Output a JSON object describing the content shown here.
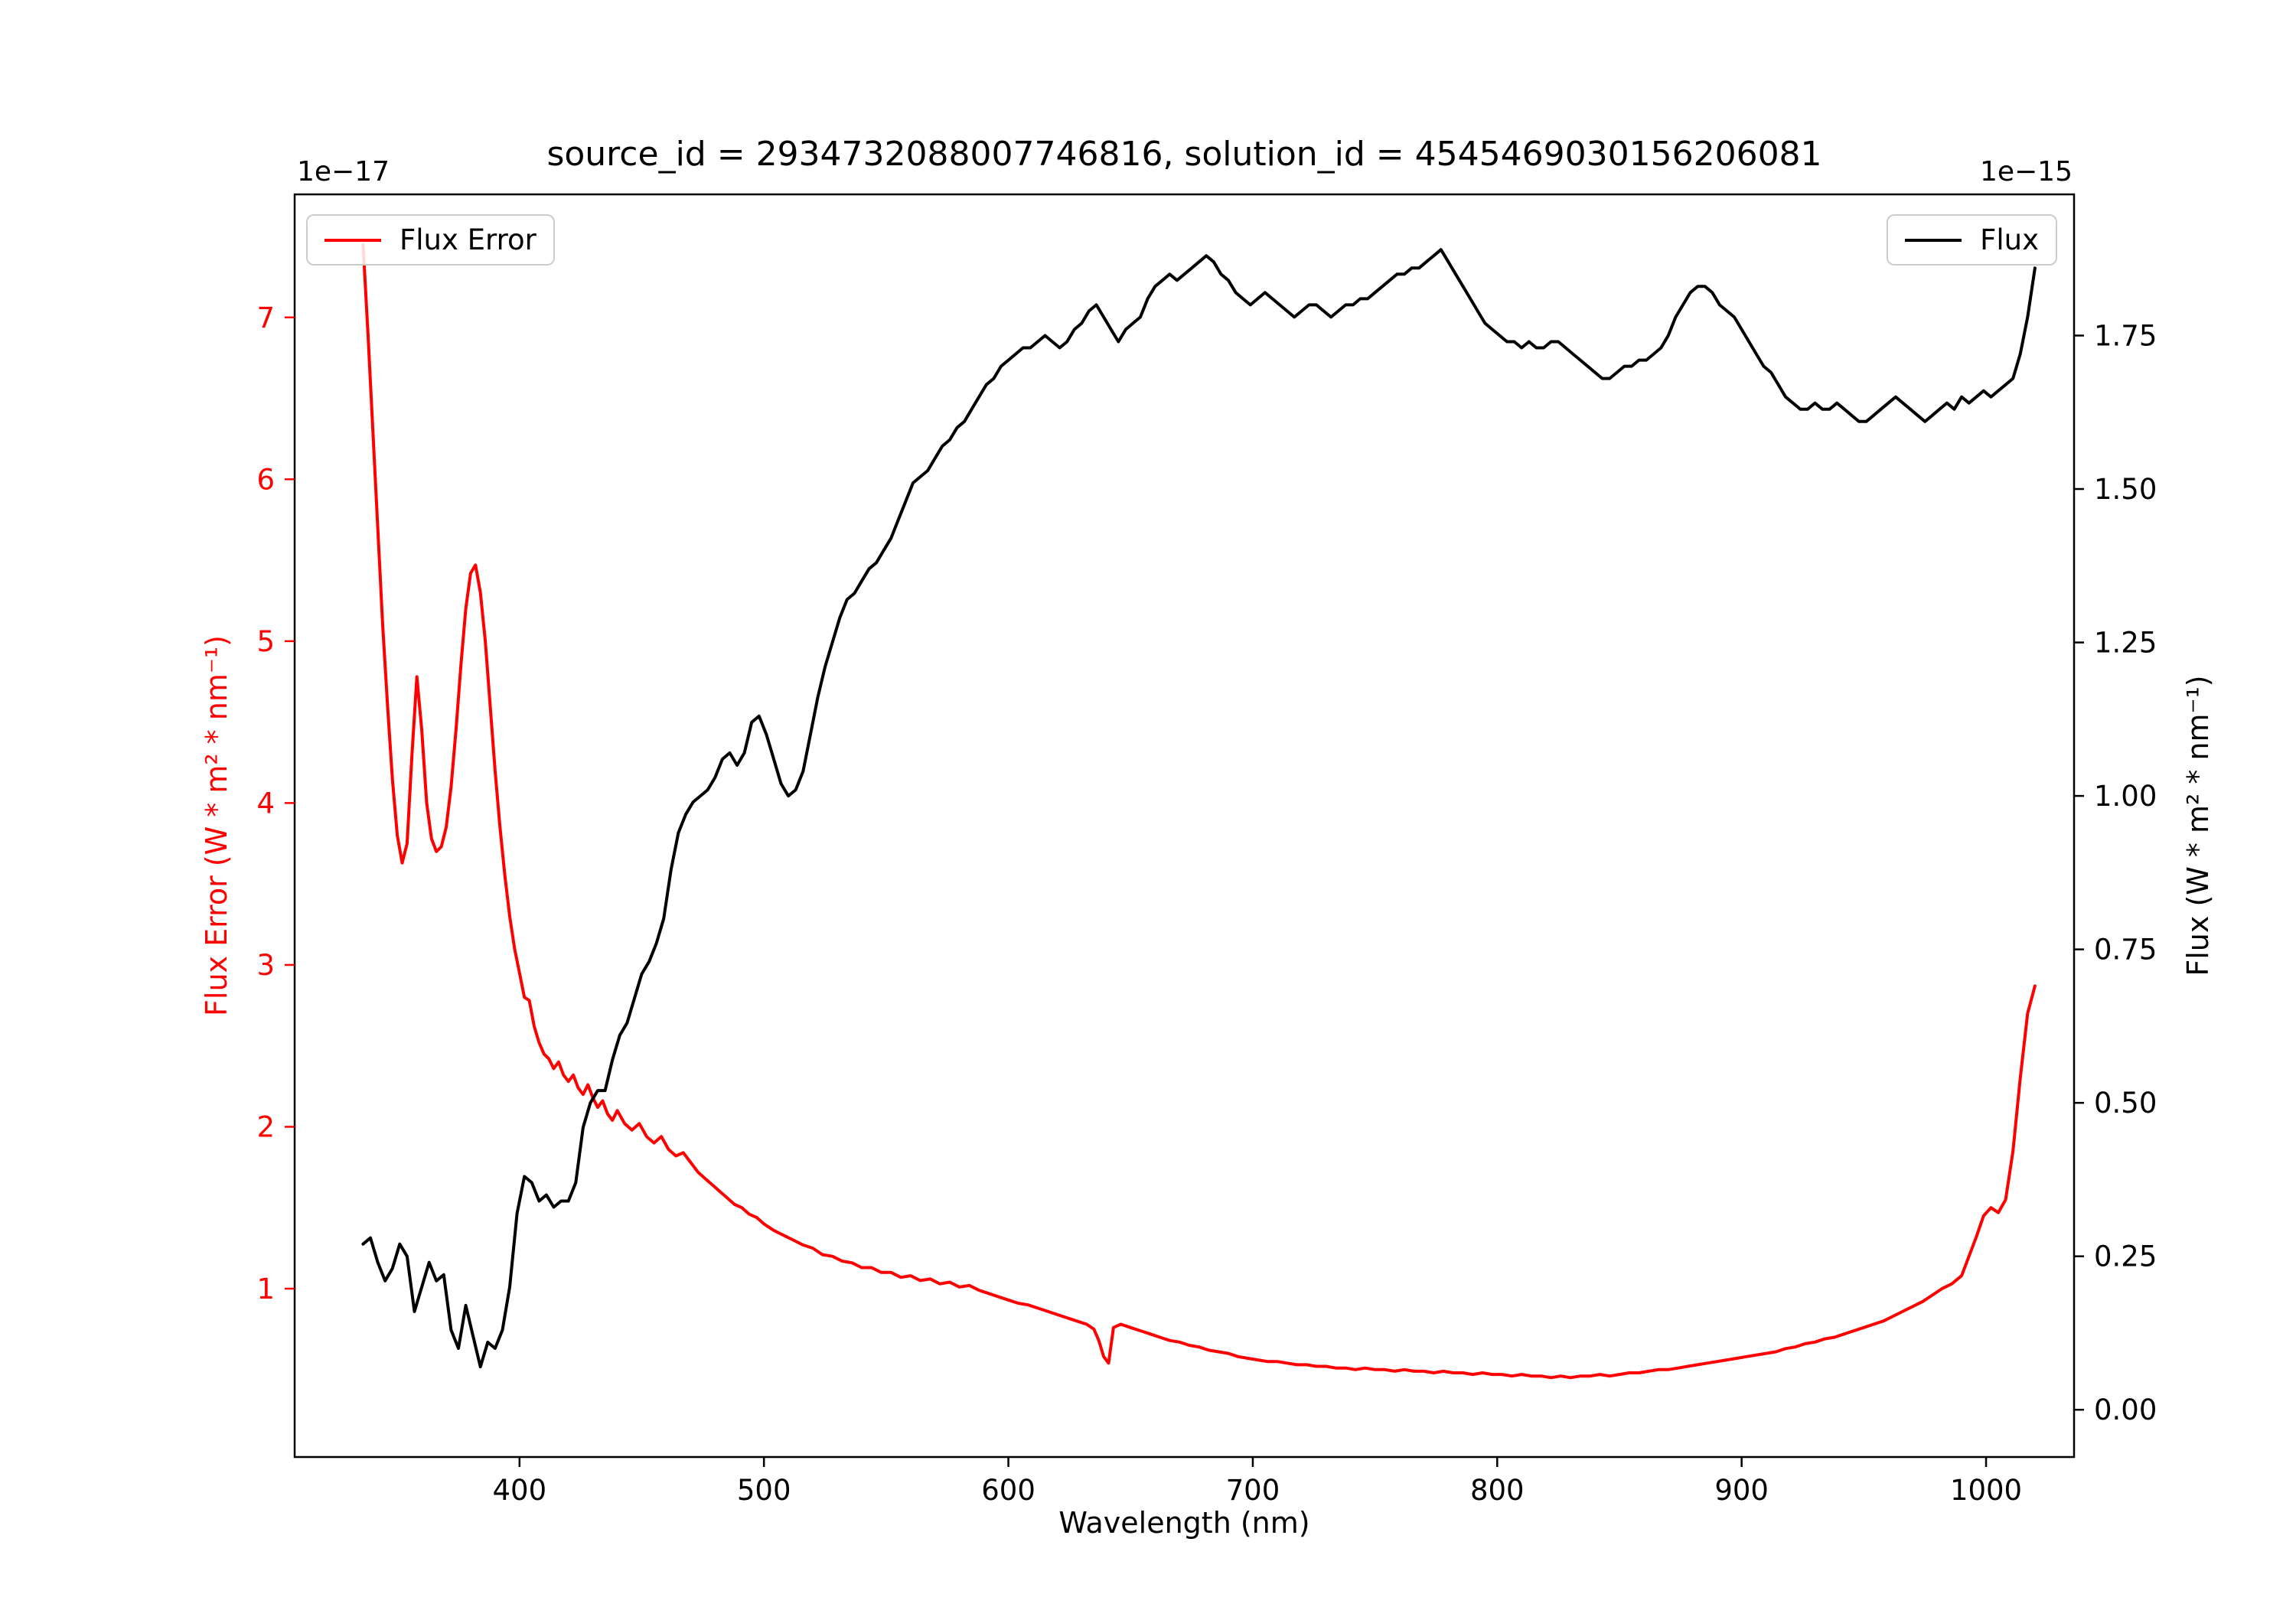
{
  "title": "source_id = 2934732088007746816, solution_id = 4545469030156206081",
  "chart_data": {
    "type": "line",
    "title": "source_id = 2934732088007746816, solution_id = 4545469030156206081",
    "xlabel": "Wavelength (nm)",
    "xlim": [
      308,
      1036
    ],
    "x_ticks": [
      400,
      500,
      600,
      700,
      800,
      900,
      1000
    ],
    "grid": false,
    "y_left": {
      "label": "Flux Error (W * m² * nm⁻¹)",
      "scale_text": "1e−17",
      "color": "#ff0000",
      "lim": [
        -0.04,
        7.76
      ],
      "ticks": [
        1,
        2,
        3,
        4,
        5,
        6,
        7
      ],
      "tick_labels": [
        "1",
        "2",
        "3",
        "4",
        "5",
        "6",
        "7"
      ]
    },
    "y_right": {
      "label": "Flux (W * m² * nm⁻¹)",
      "scale_text": "1e−15",
      "color": "#000000",
      "lim": [
        -0.077,
        1.98
      ],
      "ticks": [
        0.0,
        0.25,
        0.5,
        0.75,
        1.0,
        1.25,
        1.5,
        1.75
      ],
      "tick_labels": [
        "0.00",
        "0.25",
        "0.50",
        "0.75",
        "1.00",
        "1.25",
        "1.50",
        "1.75"
      ]
    },
    "legend": [
      {
        "label": "Flux Error",
        "loc": "upper left",
        "color": "#ff0000"
      },
      {
        "label": "Flux",
        "loc": "upper right",
        "color": "#000000"
      }
    ],
    "series": [
      {
        "name": "Flux Error",
        "axis": "left",
        "units": "1e-17 W * m² * nm⁻¹",
        "color": "#ff0000",
        "x": [
          336,
          338,
          340,
          342,
          344,
          346,
          348,
          350,
          352,
          354,
          356,
          358,
          360,
          362,
          364,
          366,
          368,
          370,
          372,
          374,
          376,
          378,
          380,
          382,
          384,
          386,
          388,
          390,
          392,
          394,
          396,
          398,
          400,
          402,
          404,
          406,
          408,
          410,
          412,
          414,
          416,
          418,
          420,
          422,
          424,
          426,
          428,
          430,
          432,
          434,
          436,
          438,
          440,
          443,
          446,
          449,
          452,
          455,
          458,
          461,
          464,
          467,
          470,
          473,
          476,
          479,
          482,
          485,
          488,
          491,
          494,
          497,
          500,
          504,
          508,
          512,
          516,
          520,
          524,
          528,
          532,
          536,
          540,
          544,
          548,
          552,
          556,
          560,
          564,
          568,
          572,
          576,
          580,
          584,
          588,
          592,
          596,
          600,
          604,
          608,
          612,
          616,
          620,
          624,
          628,
          632,
          635,
          637,
          639,
          641,
          643,
          646,
          650,
          654,
          658,
          662,
          666,
          670,
          674,
          678,
          682,
          686,
          690,
          694,
          698,
          702,
          706,
          710,
          714,
          718,
          722,
          726,
          730,
          734,
          738,
          742,
          746,
          750,
          754,
          758,
          762,
          766,
          770,
          774,
          778,
          782,
          786,
          790,
          794,
          798,
          802,
          806,
          810,
          814,
          818,
          822,
          826,
          830,
          834,
          838,
          842,
          846,
          850,
          854,
          858,
          862,
          866,
          870,
          874,
          878,
          882,
          886,
          890,
          894,
          898,
          902,
          906,
          910,
          914,
          918,
          922,
          926,
          930,
          934,
          938,
          942,
          946,
          950,
          954,
          958,
          962,
          966,
          970,
          974,
          978,
          982,
          986,
          990,
          993,
          996,
          999,
          1002,
          1005,
          1008,
          1011,
          1014,
          1017,
          1020
        ],
        "y": [
          7.45,
          6.9,
          6.3,
          5.7,
          5.1,
          4.6,
          4.15,
          3.8,
          3.63,
          3.75,
          4.3,
          4.78,
          4.45,
          4.0,
          3.78,
          3.7,
          3.73,
          3.85,
          4.1,
          4.45,
          4.85,
          5.2,
          5.42,
          5.47,
          5.3,
          5.0,
          4.6,
          4.2,
          3.85,
          3.55,
          3.3,
          3.1,
          2.95,
          2.8,
          2.78,
          2.62,
          2.52,
          2.45,
          2.42,
          2.36,
          2.4,
          2.32,
          2.28,
          2.32,
          2.24,
          2.2,
          2.26,
          2.18,
          2.12,
          2.16,
          2.08,
          2.04,
          2.1,
          2.02,
          1.98,
          2.02,
          1.94,
          1.9,
          1.94,
          1.86,
          1.82,
          1.84,
          1.78,
          1.72,
          1.68,
          1.64,
          1.6,
          1.56,
          1.52,
          1.5,
          1.46,
          1.44,
          1.4,
          1.36,
          1.33,
          1.3,
          1.27,
          1.25,
          1.21,
          1.2,
          1.17,
          1.16,
          1.13,
          1.13,
          1.1,
          1.1,
          1.07,
          1.08,
          1.05,
          1.06,
          1.03,
          1.04,
          1.01,
          1.02,
          0.99,
          0.97,
          0.95,
          0.93,
          0.91,
          0.9,
          0.88,
          0.86,
          0.84,
          0.82,
          0.8,
          0.78,
          0.75,
          0.68,
          0.58,
          0.54,
          0.76,
          0.78,
          0.76,
          0.74,
          0.72,
          0.7,
          0.68,
          0.67,
          0.65,
          0.64,
          0.62,
          0.61,
          0.6,
          0.58,
          0.57,
          0.56,
          0.55,
          0.55,
          0.54,
          0.53,
          0.53,
          0.52,
          0.52,
          0.51,
          0.51,
          0.5,
          0.51,
          0.5,
          0.5,
          0.49,
          0.5,
          0.49,
          0.49,
          0.48,
          0.49,
          0.48,
          0.48,
          0.47,
          0.48,
          0.47,
          0.47,
          0.46,
          0.47,
          0.46,
          0.46,
          0.45,
          0.46,
          0.45,
          0.46,
          0.46,
          0.47,
          0.46,
          0.47,
          0.48,
          0.48,
          0.49,
          0.5,
          0.5,
          0.51,
          0.52,
          0.53,
          0.54,
          0.55,
          0.56,
          0.57,
          0.58,
          0.59,
          0.6,
          0.61,
          0.63,
          0.64,
          0.66,
          0.67,
          0.69,
          0.7,
          0.72,
          0.74,
          0.76,
          0.78,
          0.8,
          0.83,
          0.86,
          0.89,
          0.92,
          0.96,
          1.0,
          1.03,
          1.08,
          1.2,
          1.32,
          1.45,
          1.5,
          1.47,
          1.55,
          1.85,
          2.3,
          2.7,
          2.87
        ]
      },
      {
        "name": "Flux",
        "axis": "right",
        "units": "1e-15 W * m² * nm⁻¹",
        "color": "#000000",
        "x_start": 336,
        "x_step": 3,
        "y": [
          0.27,
          0.28,
          0.24,
          0.21,
          0.23,
          0.27,
          0.25,
          0.16,
          0.2,
          0.24,
          0.21,
          0.22,
          0.13,
          0.1,
          0.17,
          0.12,
          0.07,
          0.11,
          0.1,
          0.13,
          0.2,
          0.32,
          0.38,
          0.37,
          0.34,
          0.35,
          0.33,
          0.34,
          0.34,
          0.37,
          0.46,
          0.5,
          0.52,
          0.52,
          0.57,
          0.61,
          0.63,
          0.67,
          0.71,
          0.73,
          0.76,
          0.8,
          0.88,
          0.94,
          0.97,
          0.99,
          1.0,
          1.01,
          1.03,
          1.06,
          1.07,
          1.05,
          1.07,
          1.12,
          1.13,
          1.1,
          1.06,
          1.02,
          1.0,
          1.01,
          1.04,
          1.1,
          1.16,
          1.21,
          1.25,
          1.29,
          1.32,
          1.33,
          1.35,
          1.37,
          1.38,
          1.4,
          1.42,
          1.45,
          1.48,
          1.51,
          1.52,
          1.53,
          1.55,
          1.57,
          1.58,
          1.6,
          1.61,
          1.63,
          1.65,
          1.67,
          1.68,
          1.7,
          1.71,
          1.72,
          1.73,
          1.73,
          1.74,
          1.75,
          1.74,
          1.73,
          1.74,
          1.76,
          1.77,
          1.79,
          1.8,
          1.78,
          1.76,
          1.74,
          1.76,
          1.77,
          1.78,
          1.81,
          1.83,
          1.84,
          1.85,
          1.84,
          1.85,
          1.86,
          1.87,
          1.88,
          1.87,
          1.85,
          1.84,
          1.82,
          1.81,
          1.8,
          1.81,
          1.82,
          1.81,
          1.8,
          1.79,
          1.78,
          1.79,
          1.8,
          1.8,
          1.79,
          1.78,
          1.79,
          1.8,
          1.8,
          1.81,
          1.81,
          1.82,
          1.83,
          1.84,
          1.85,
          1.85,
          1.86,
          1.86,
          1.87,
          1.88,
          1.89,
          1.87,
          1.85,
          1.83,
          1.81,
          1.79,
          1.77,
          1.76,
          1.75,
          1.74,
          1.74,
          1.73,
          1.74,
          1.73,
          1.73,
          1.74,
          1.74,
          1.73,
          1.72,
          1.71,
          1.7,
          1.69,
          1.68,
          1.68,
          1.69,
          1.7,
          1.7,
          1.71,
          1.71,
          1.72,
          1.73,
          1.75,
          1.78,
          1.8,
          1.82,
          1.83,
          1.83,
          1.82,
          1.8,
          1.79,
          1.78,
          1.76,
          1.74,
          1.72,
          1.7,
          1.69,
          1.67,
          1.65,
          1.64,
          1.63,
          1.63,
          1.64,
          1.63,
          1.63,
          1.64,
          1.63,
          1.62,
          1.61,
          1.61,
          1.62,
          1.63,
          1.64,
          1.65,
          1.64,
          1.63,
          1.62,
          1.61,
          1.62,
          1.63,
          1.64,
          1.63,
          1.65,
          1.64,
          1.65,
          1.66,
          1.65,
          1.66,
          1.67,
          1.68,
          1.72,
          1.78,
          1.86
        ]
      }
    ]
  }
}
